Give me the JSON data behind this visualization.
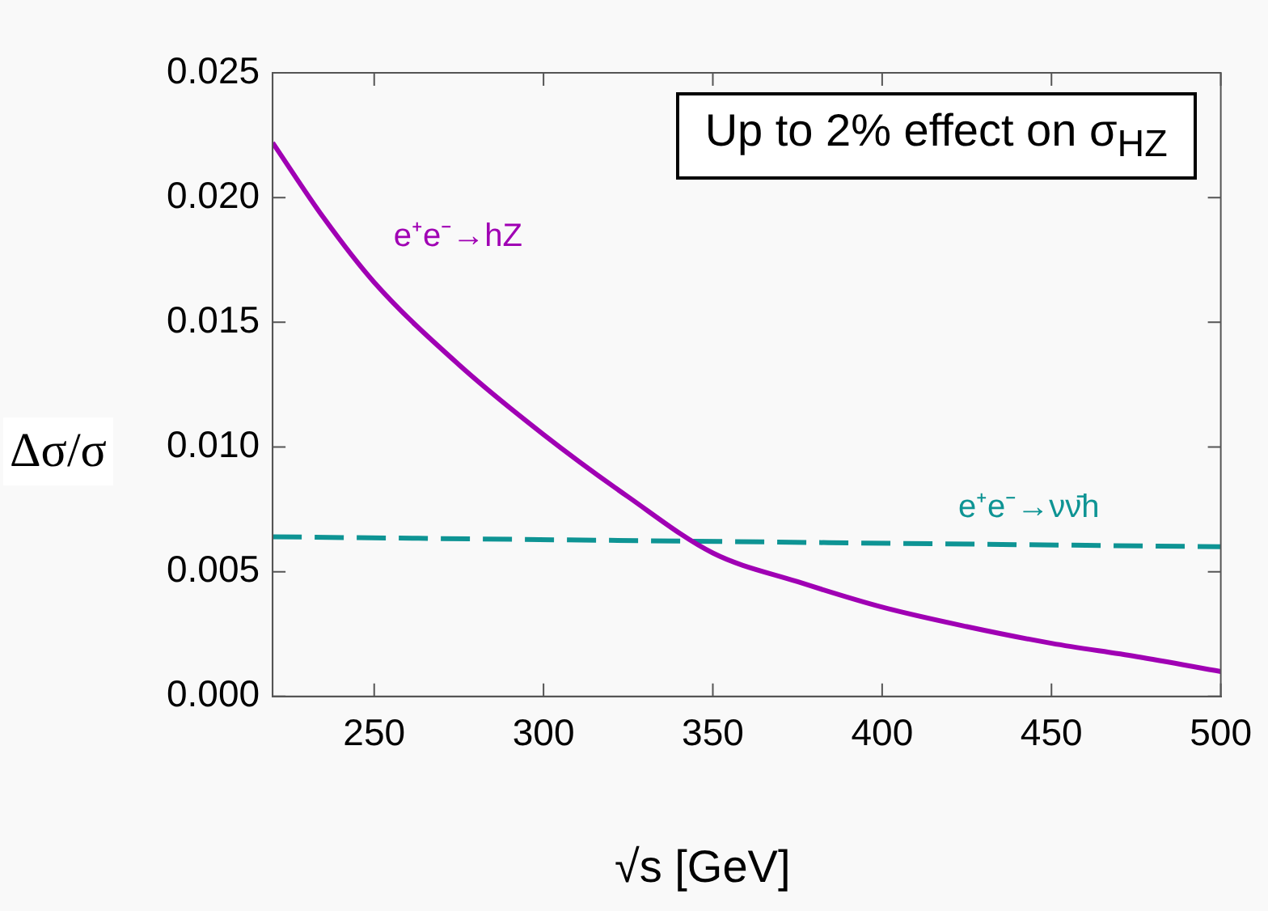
{
  "chart_data": {
    "type": "line",
    "xlabel": "√s [GeV]",
    "ylabel": "Δσ/σ",
    "xlim": [
      220,
      500
    ],
    "xticks": [
      250,
      300,
      350,
      400,
      450,
      500
    ],
    "ylim": [
      0,
      0.025
    ],
    "yticks": [
      {
        "value": 0,
        "label": "0.000"
      },
      {
        "value": 0.005,
        "label": "0.005"
      },
      {
        "value": 0.01,
        "label": "0.010"
      },
      {
        "value": 0.015,
        "label": "0.015"
      },
      {
        "value": 0.02,
        "label": "0.020"
      },
      {
        "value": 0.025,
        "label": "0.025"
      }
    ],
    "grid": false,
    "legend": false,
    "marker": "none",
    "series": [
      {
        "name": "e⁺e⁻→hZ",
        "color": "#a000b4",
        "line_style": "solid",
        "x": [
          220,
          235,
          250,
          275,
          300,
          325,
          350,
          375,
          400,
          425,
          450,
          475,
          500
        ],
        "values": [
          0.0222,
          0.0192,
          0.0166,
          0.0133,
          0.0105,
          0.008,
          0.00575,
          0.0046,
          0.00358,
          0.0028,
          0.00213,
          0.0016,
          0.001
        ]
      },
      {
        "name": "e⁺e⁻→νν̄h",
        "color": "#0e9494",
        "line_style": "dashed",
        "x": [
          220,
          500
        ],
        "values": [
          0.0064,
          0.006
        ]
      }
    ],
    "annotations": [
      "Up to 2% effect on σ$_{HZ}$"
    ]
  }
}
